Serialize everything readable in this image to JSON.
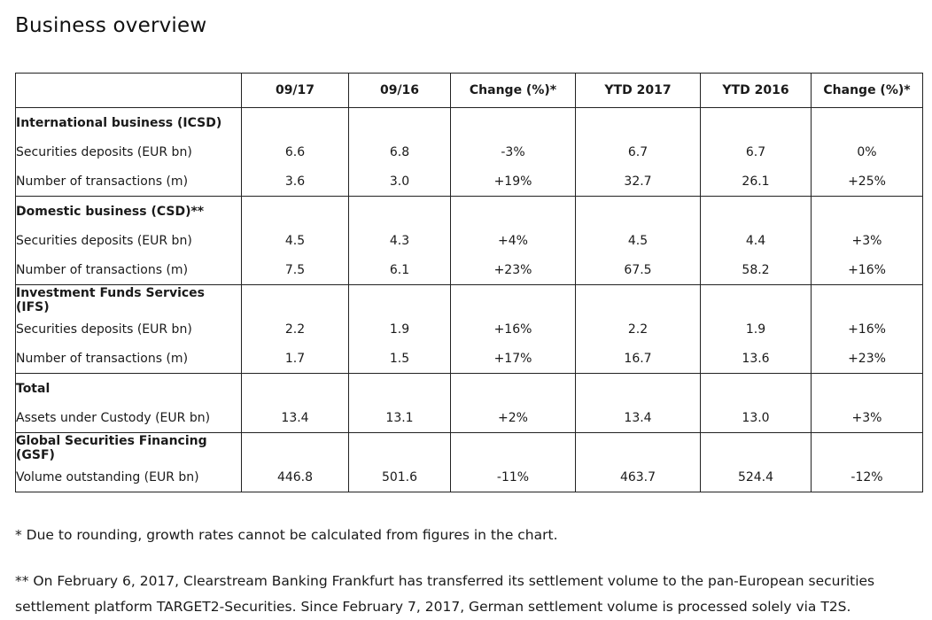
{
  "title": "Business overview",
  "headers": [
    "",
    "09/17",
    "09/16",
    "Change (%)*",
    "YTD 2017",
    "YTD 2016",
    "Change (%)*"
  ],
  "sections": [
    {
      "title": "International business (ICSD)",
      "rows": [
        {
          "label": "Securities deposits (EUR bn)",
          "values": [
            "6.6",
            "6.8",
            "-3%",
            "6.7",
            "6.7",
            "0%"
          ]
        },
        {
          "label": "Number of transactions (m)",
          "values": [
            "3.6",
            "3.0",
            "+19%",
            "32.7",
            "26.1",
            "+25%"
          ]
        }
      ]
    },
    {
      "title": "Domestic business (CSD)**",
      "rows": [
        {
          "label": "Securities deposits (EUR bn)",
          "values": [
            "4.5",
            "4.3",
            "+4%",
            "4.5",
            "4.4",
            "+3%"
          ]
        },
        {
          "label": "Number of transactions (m)",
          "values": [
            "7.5",
            "6.1",
            "+23%",
            "67.5",
            "58.2",
            "+16%"
          ]
        }
      ]
    },
    {
      "title": "Investment Funds Services (IFS)",
      "rows": [
        {
          "label": "Securities deposits (EUR bn)",
          "values": [
            "2.2",
            "1.9",
            "+16%",
            "2.2",
            "1.9",
            "+16%"
          ]
        },
        {
          "label": "Number of transactions (m)",
          "values": [
            "1.7",
            "1.5",
            "+17%",
            "16.7",
            "13.6",
            "+23%"
          ]
        }
      ]
    },
    {
      "title": "Total",
      "rows": [
        {
          "label": "Assets under Custody (EUR bn)",
          "values": [
            "13.4",
            "13.1",
            "+2%",
            "13.4",
            "13.0",
            "+3%"
          ]
        }
      ]
    },
    {
      "title": "Global Securities Financing (GSF)",
      "rows": [
        {
          "label": "Volume outstanding (EUR bn)",
          "values": [
            "446.8",
            "501.6",
            "-11%",
            "463.7",
            "524.4",
            "-12%"
          ]
        }
      ]
    }
  ],
  "footnotes": [
    "* Due to rounding, growth rates cannot be calculated from figures in the chart.",
    "** On February 6, 2017, Clearstream Banking Frankfurt has transferred its settlement volume to the pan-European securities settlement platform TARGET2-Securities. Since February 7, 2017, German settlement volume is processed solely via T2S."
  ],
  "chart_data": {
    "type": "table",
    "title": "Business overview",
    "columns": [
      "",
      "09/17",
      "09/16",
      "Change (%)*",
      "YTD 2017",
      "YTD 2016",
      "Change (%)*"
    ],
    "rows": [
      [
        "International business (ICSD)",
        "",
        "",
        "",
        "",
        "",
        ""
      ],
      [
        "Securities deposits (EUR bn)",
        6.6,
        6.8,
        "-3%",
        6.7,
        6.7,
        "0%"
      ],
      [
        "Number of transactions (m)",
        3.6,
        3.0,
        "+19%",
        32.7,
        26.1,
        "+25%"
      ],
      [
        "Domestic business (CSD)**",
        "",
        "",
        "",
        "",
        "",
        ""
      ],
      [
        "Securities deposits (EUR bn)",
        4.5,
        4.3,
        "+4%",
        4.5,
        4.4,
        "+3%"
      ],
      [
        "Number of transactions (m)",
        7.5,
        6.1,
        "+23%",
        67.5,
        58.2,
        "+16%"
      ],
      [
        "Investment Funds Services (IFS)",
        "",
        "",
        "",
        "",
        "",
        ""
      ],
      [
        "Securities deposits (EUR bn)",
        2.2,
        1.9,
        "+16%",
        2.2,
        1.9,
        "+16%"
      ],
      [
        "Number of transactions (m)",
        1.7,
        1.5,
        "+17%",
        16.7,
        13.6,
        "+23%"
      ],
      [
        "Total",
        "",
        "",
        "",
        "",
        "",
        ""
      ],
      [
        "Assets under Custody (EUR bn)",
        13.4,
        13.1,
        "+2%",
        13.4,
        13.0,
        "+3%"
      ],
      [
        "Global Securities Financing (GSF)",
        "",
        "",
        "",
        "",
        "",
        ""
      ],
      [
        "Volume outstanding (EUR bn)",
        446.8,
        501.6,
        "-11%",
        463.7,
        524.4,
        "-12%"
      ]
    ]
  }
}
